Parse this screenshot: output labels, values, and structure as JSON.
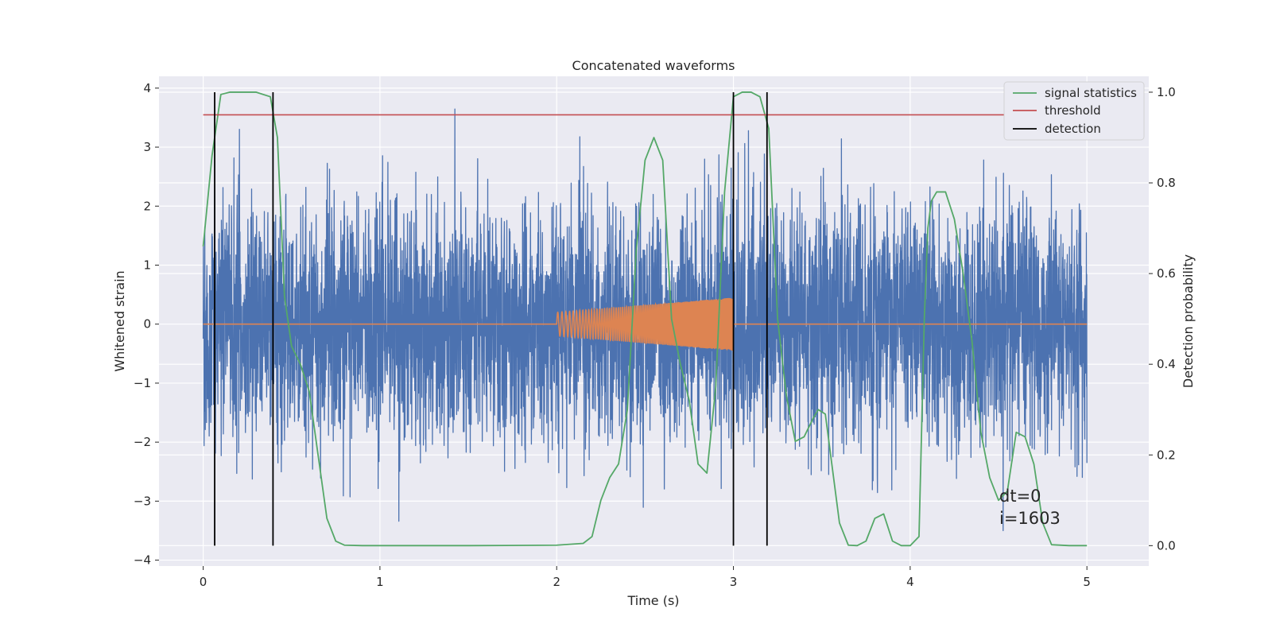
{
  "chart_data": {
    "type": "line",
    "title": "Concatenated waveforms",
    "xlabel": "Time (s)",
    "ylabel": "Whitened strain",
    "y2label": "Detection probability",
    "xlim": [
      -0.25,
      5.35
    ],
    "ylim": [
      -4.1,
      4.2
    ],
    "y2lim": [
      -0.045,
      1.035
    ],
    "x_ticks": [
      0,
      1,
      2,
      3,
      4,
      5
    ],
    "x_tick_labels": [
      "0",
      "1",
      "2",
      "3",
      "4",
      "5"
    ],
    "y_ticks": [
      -4,
      -3,
      -2,
      -1,
      0,
      1,
      2,
      3,
      4
    ],
    "y_tick_labels": [
      "−4",
      "−3",
      "−2",
      "−1",
      "0",
      "1",
      "2",
      "3",
      "4"
    ],
    "y2_ticks": [
      0.0,
      0.2,
      0.4,
      0.6,
      0.8,
      1.0
    ],
    "y2_tick_labels": [
      "0.0",
      "0.2",
      "0.4",
      "0.6",
      "0.8",
      "1.0"
    ],
    "grid": true,
    "legend_position": "top-right",
    "legend": [
      {
        "label": "signal statistics",
        "color": "#55a868"
      },
      {
        "label": "threshold",
        "color": "#c44e52"
      },
      {
        "label": "detection",
        "color": "#000000"
      }
    ],
    "series": [
      {
        "name": "strain",
        "color": "#4c72b0",
        "x_range": [
          0,
          5
        ],
        "amplitude_range": [
          -3.5,
          3.8
        ],
        "note_shape": "dense noise"
      },
      {
        "name": "waveform",
        "color": "#dd8452",
        "x_range": [
          2,
          3
        ],
        "start_amplitude": 0.2,
        "end_amplitude": 0.45
      },
      {
        "name": "signal statistics",
        "color": "#55a868",
        "axis": "right",
        "x": [
          0.0,
          0.05,
          0.1,
          0.15,
          0.2,
          0.3,
          0.38,
          0.42,
          0.46,
          0.5,
          0.55,
          0.6,
          0.65,
          0.7,
          0.75,
          0.8,
          0.9,
          1.0,
          1.5,
          2.0,
          2.15,
          2.2,
          2.25,
          2.3,
          2.35,
          2.4,
          2.45,
          2.5,
          2.55,
          2.6,
          2.65,
          2.7,
          2.75,
          2.8,
          2.85,
          2.9,
          2.95,
          3.0,
          3.05,
          3.1,
          3.15,
          3.2,
          3.25,
          3.3,
          3.35,
          3.4,
          3.45,
          3.48,
          3.52,
          3.55,
          3.6,
          3.65,
          3.7,
          3.75,
          3.8,
          3.85,
          3.9,
          3.95,
          4.0,
          4.05,
          4.08,
          4.1,
          4.12,
          4.15,
          4.2,
          4.25,
          4.3,
          4.35,
          4.4,
          4.45,
          4.5,
          4.55,
          4.6,
          4.65,
          4.7,
          4.75,
          4.8,
          4.9,
          5.0
        ],
        "y": [
          0.66,
          0.86,
          0.995,
          1.0,
          1.0,
          1.0,
          0.99,
          0.9,
          0.55,
          0.44,
          0.4,
          0.34,
          0.2,
          0.06,
          0.01,
          0.001,
          0.0,
          0.0,
          0.0,
          0.001,
          0.005,
          0.02,
          0.1,
          0.15,
          0.18,
          0.3,
          0.65,
          0.85,
          0.9,
          0.85,
          0.5,
          0.4,
          0.32,
          0.18,
          0.16,
          0.35,
          0.78,
          0.99,
          1.0,
          1.0,
          0.99,
          0.92,
          0.5,
          0.33,
          0.23,
          0.24,
          0.28,
          0.3,
          0.29,
          0.2,
          0.05,
          0.001,
          0.0,
          0.01,
          0.06,
          0.07,
          0.01,
          0.0,
          0.0,
          0.02,
          0.5,
          0.7,
          0.76,
          0.78,
          0.78,
          0.72,
          0.6,
          0.45,
          0.25,
          0.15,
          0.1,
          0.12,
          0.25,
          0.24,
          0.18,
          0.05,
          0.002,
          0.0,
          0.0
        ]
      },
      {
        "name": "threshold",
        "color": "#c44e52",
        "axis": "right",
        "x": [
          0,
          5.1
        ],
        "y": [
          0.95,
          0.95
        ]
      },
      {
        "name": "detection",
        "color": "#000000",
        "axis": "right",
        "type": "vlines",
        "x": [
          0.065,
          0.395,
          3.0,
          3.19
        ],
        "y_range": [
          0.0,
          1.0
        ]
      }
    ],
    "annotations": [
      "dt=0",
      "i=1603"
    ]
  }
}
